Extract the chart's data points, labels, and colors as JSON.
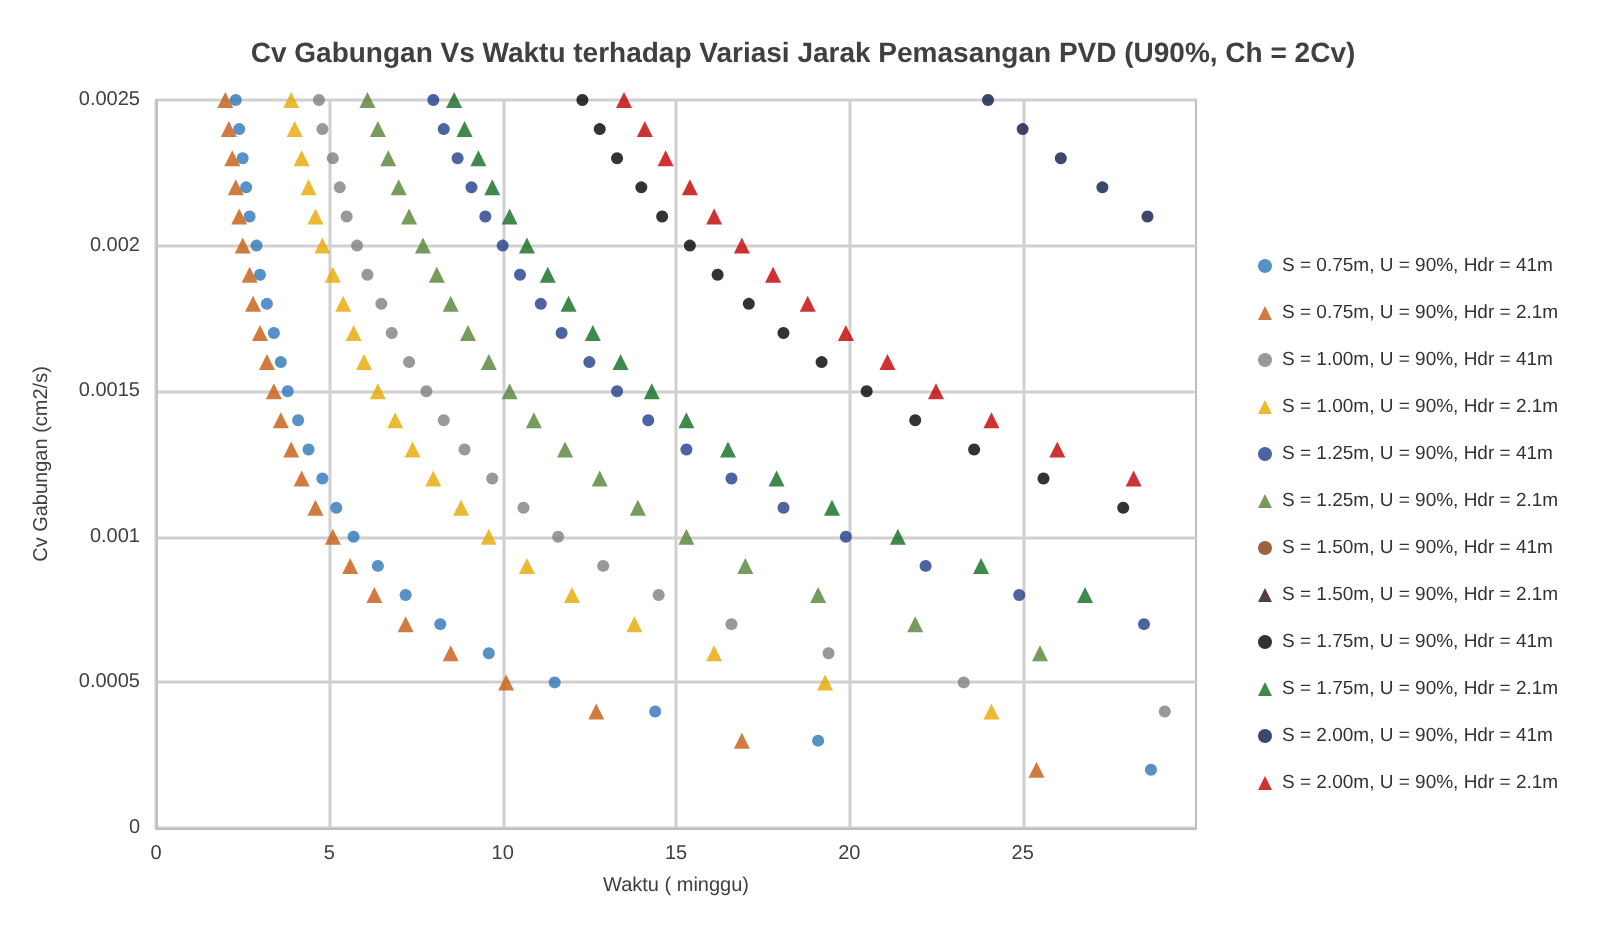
{
  "chart_data": {
    "type": "scatter",
    "title": "Cv Gabungan Vs Waktu terhadap Variasi Jarak Pemasangan PVD (U90%, Ch = 2Cv)",
    "xlabel": "Waktu ( minggu)",
    "ylabel": "Cv Gabungan (cm2/s)",
    "xlim": [
      0,
      30
    ],
    "xticks": [
      0,
      5,
      10,
      15,
      20,
      25
    ],
    "ylim": [
      0,
      0.0025
    ],
    "yticks": [
      0,
      0.0005,
      0.001,
      0.0015,
      0.002,
      0.0025
    ],
    "grid": true,
    "legend": "right",
    "series": [
      {
        "name": "S = 0.75m, U = 90%, Hdr = 41m",
        "color": "#2e75b6",
        "marker": "circle",
        "x": [
          2.3,
          2.4,
          2.5,
          2.6,
          2.7,
          2.9,
          3.0,
          3.2,
          3.4,
          3.6,
          3.8,
          4.1,
          4.4,
          4.8,
          5.2,
          5.7,
          6.4,
          7.2,
          8.2,
          9.6,
          11.5,
          14.4,
          19.1,
          28.7
        ],
        "values": [
          0.0025,
          0.0024,
          0.0023,
          0.0022,
          0.0021,
          0.002,
          0.0019,
          0.0018,
          0.0017,
          0.0016,
          0.0015,
          0.0014,
          0.0013,
          0.0012,
          0.0011,
          0.001,
          0.0009,
          0.0008,
          0.0007,
          0.0006,
          0.0005,
          0.0004,
          0.0003,
          0.0002
        ]
      },
      {
        "name": "S = 0.75m, U = 90%, Hdr = 2.1m",
        "color": "#c55a11",
        "marker": "triangle",
        "x": [
          2.0,
          2.1,
          2.2,
          2.3,
          2.4,
          2.5,
          2.7,
          2.8,
          3.0,
          3.2,
          3.4,
          3.6,
          3.9,
          4.2,
          4.6,
          5.1,
          5.6,
          6.3,
          7.2,
          8.5,
          10.1,
          12.7,
          16.9,
          25.4
        ],
        "values": [
          0.0025,
          0.0024,
          0.0023,
          0.0022,
          0.0021,
          0.002,
          0.0019,
          0.0018,
          0.0017,
          0.0016,
          0.0015,
          0.0014,
          0.0013,
          0.0012,
          0.0011,
          0.001,
          0.0009,
          0.0008,
          0.0007,
          0.0006,
          0.0005,
          0.0004,
          0.0003,
          0.0002
        ]
      },
      {
        "name": "S = 1.00m, U = 90%, Hdr = 41m",
        "color": "#7f7f7f",
        "marker": "circle",
        "x": [
          4.7,
          4.8,
          5.1,
          5.3,
          5.5,
          5.8,
          6.1,
          6.5,
          6.8,
          7.3,
          7.8,
          8.3,
          8.9,
          9.7,
          10.6,
          11.6,
          12.9,
          14.5,
          16.6,
          19.4,
          23.3,
          29.1
        ],
        "values": [
          0.0025,
          0.0024,
          0.0023,
          0.0022,
          0.0021,
          0.002,
          0.0019,
          0.0018,
          0.0017,
          0.0016,
          0.0015,
          0.0014,
          0.0013,
          0.0012,
          0.0011,
          0.001,
          0.0009,
          0.0008,
          0.0007,
          0.0006,
          0.0005,
          0.0004
        ]
      },
      {
        "name": "S = 1.00m, U = 90%, Hdr = 2.1m",
        "color": "#e6a800",
        "marker": "triangle",
        "x": [
          3.9,
          4.0,
          4.2,
          4.4,
          4.6,
          4.8,
          5.1,
          5.4,
          5.7,
          6.0,
          6.4,
          6.9,
          7.4,
          8.0,
          8.8,
          9.6,
          10.7,
          12.0,
          13.8,
          16.1,
          19.3,
          24.1
        ],
        "values": [
          0.0025,
          0.0024,
          0.0023,
          0.0022,
          0.0021,
          0.002,
          0.0019,
          0.0018,
          0.0017,
          0.0016,
          0.0015,
          0.0014,
          0.0013,
          0.0012,
          0.0011,
          0.001,
          0.0009,
          0.0008,
          0.0007,
          0.0006,
          0.0005,
          0.0004
        ]
      },
      {
        "name": "S = 1.25m, U = 90%, Hdr = 41m",
        "color": "#203c8c",
        "marker": "circle",
        "x": [
          8.0,
          8.3,
          8.7,
          9.1,
          9.5,
          10.0,
          10.5,
          11.1,
          11.7,
          12.5,
          13.3,
          14.2,
          15.3,
          16.6,
          18.1,
          19.9,
          22.2,
          24.9,
          28.5
        ],
        "values": [
          0.0025,
          0.0024,
          0.0023,
          0.0022,
          0.0021,
          0.002,
          0.0019,
          0.0018,
          0.0017,
          0.0016,
          0.0015,
          0.0014,
          0.0013,
          0.0012,
          0.0011,
          0.001,
          0.0009,
          0.0008,
          0.0007
        ]
      },
      {
        "name": "S = 1.25m, U = 90%, Hdr = 2.1m",
        "color": "#548235",
        "marker": "triangle",
        "x": [
          6.1,
          6.4,
          6.7,
          7.0,
          7.3,
          7.7,
          8.1,
          8.5,
          9.0,
          9.6,
          10.2,
          10.9,
          11.8,
          12.8,
          13.9,
          15.3,
          17.0,
          19.1,
          21.9,
          25.5
        ],
        "values": [
          0.0025,
          0.0024,
          0.0023,
          0.0022,
          0.0021,
          0.002,
          0.0019,
          0.0018,
          0.0017,
          0.0016,
          0.0015,
          0.0014,
          0.0013,
          0.0012,
          0.0011,
          0.001,
          0.0009,
          0.0008,
          0.0007,
          0.0006
        ]
      },
      {
        "name": "S = 1.50m, U = 90%, Hdr = 41m",
        "color": "#843c0c",
        "marker": "circle"
      },
      {
        "name": "S = 1.50m, U = 90%, Hdr = 2.1m",
        "color": "#2b0d12",
        "marker": "triangle"
      },
      {
        "name": "S = 1.75m, U = 90%, Hdr = 41m",
        "color": "#000000",
        "marker": "circle",
        "x": [
          12.3,
          12.8,
          13.3,
          14.0,
          14.6,
          15.4,
          16.2,
          17.1,
          18.1,
          19.2,
          20.5,
          21.9,
          23.6,
          25.6,
          27.9
        ],
        "values": [
          0.0025,
          0.0024,
          0.0023,
          0.0022,
          0.0021,
          0.002,
          0.0019,
          0.0018,
          0.0017,
          0.0016,
          0.0015,
          0.0014,
          0.0013,
          0.0012,
          0.0011
        ]
      },
      {
        "name": "S = 1.75m, U = 90%, Hdr = 2.1m",
        "color": "#0e6b1e",
        "marker": "triangle",
        "x": [
          8.6,
          8.9,
          9.3,
          9.7,
          10.2,
          10.7,
          11.3,
          11.9,
          12.6,
          13.4,
          14.3,
          15.3,
          16.5,
          17.9,
          19.5,
          21.4,
          23.8,
          26.8
        ],
        "values": [
          0.0025,
          0.0024,
          0.0023,
          0.0022,
          0.0021,
          0.002,
          0.0019,
          0.0018,
          0.0017,
          0.0016,
          0.0015,
          0.0014,
          0.0013,
          0.0012,
          0.0011,
          0.001,
          0.0009,
          0.0008
        ]
      },
      {
        "name": "S = 2.00m, U = 90%, Hdr = 41m",
        "color": "#0c1a4a",
        "marker": "circle",
        "x": [
          24.0,
          25.0,
          26.1,
          27.3,
          28.6
        ],
        "values": [
          0.0025,
          0.0024,
          0.0023,
          0.0022,
          0.0021
        ]
      },
      {
        "name": "S = 2.00m, U = 90%, Hdr = 2.1m",
        "color": "#c00000",
        "marker": "triangle",
        "x": [
          13.5,
          14.1,
          14.7,
          15.4,
          16.1,
          16.9,
          17.8,
          18.8,
          19.9,
          21.1,
          22.5,
          24.1,
          26.0,
          28.2
        ],
        "values": [
          0.0025,
          0.0024,
          0.0023,
          0.0022,
          0.0021,
          0.002,
          0.0019,
          0.0018,
          0.0017,
          0.0016,
          0.0015,
          0.0014,
          0.0013,
          0.0012
        ]
      }
    ]
  }
}
